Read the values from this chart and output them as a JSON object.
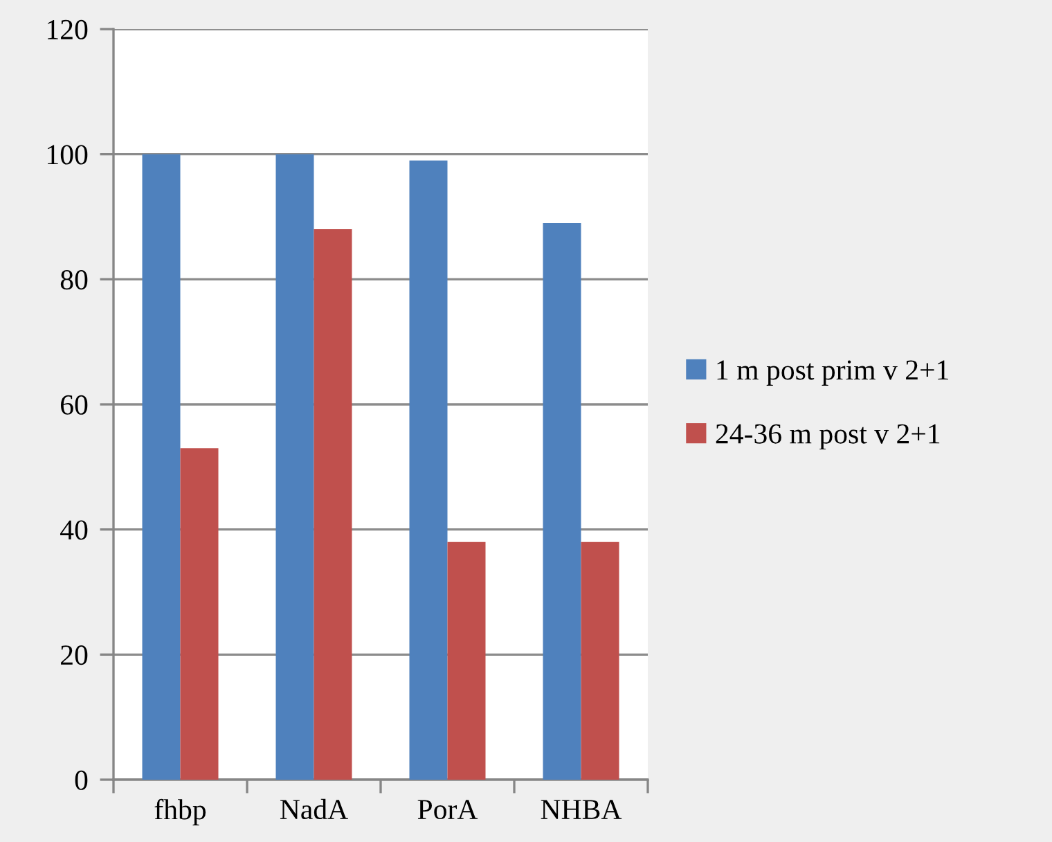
{
  "chart_data": {
    "type": "bar",
    "categories": [
      "fhbp",
      "NadA",
      "PorA",
      "NHBA"
    ],
    "series": [
      {
        "name": "1 m post prim v 2+1",
        "color": "#4f81bd",
        "values": [
          100,
          100,
          99,
          89
        ]
      },
      {
        "name": "24-36 m post v 2+1",
        "color": "#c0504d",
        "values": [
          53,
          88,
          38,
          38
        ]
      }
    ],
    "ylim": [
      0,
      120
    ],
    "yticks": [
      0,
      20,
      40,
      60,
      80,
      100,
      120
    ],
    "grid": "y",
    "legend": "right"
  }
}
